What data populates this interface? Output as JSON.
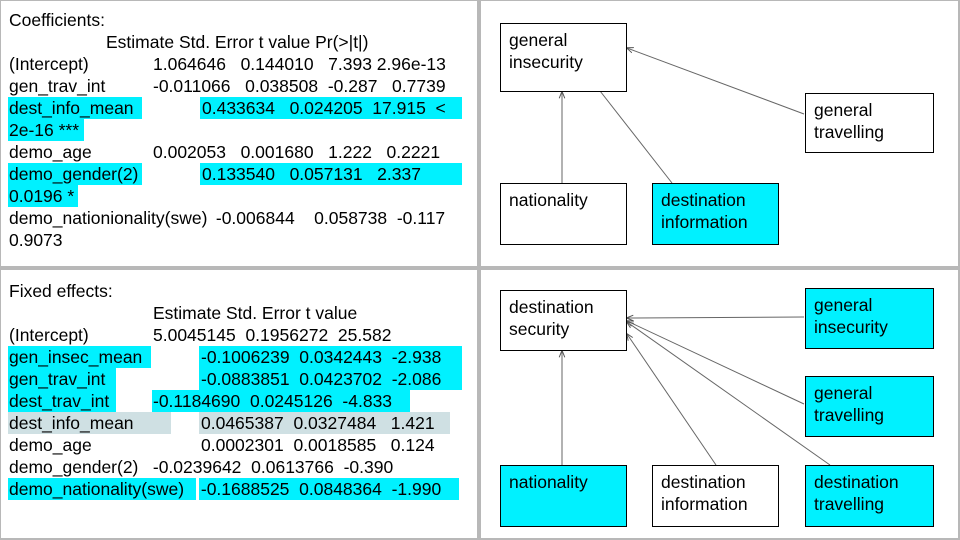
{
  "colors": {
    "highlight": "#00f1ff",
    "highlight_grey": "#cfe0e3",
    "divider": "#b8b8b8"
  },
  "coefficients": {
    "title": "Coefficients:",
    "header": "Estimate Std. Error t value Pr(>|t|)",
    "rows": [
      {
        "name": "(Intercept)",
        "values": "1.064646   0.144010   7.393 2.96e-13"
      },
      {
        "name": "gen_trav_int",
        "values": "-0.011066   0.038508  -0.287   0.7739"
      },
      {
        "name": "dest_info_mean",
        "values": "0.433634   0.024205  17.915  <",
        "wrap": "2e-16 ***"
      },
      {
        "name": "demo_age",
        "values": "0.002053   0.001680   1.222   0.2221"
      },
      {
        "name": "demo_gender(2)",
        "values": "0.133540   0.057131   2.337",
        "wrap": "0.0196 *"
      },
      {
        "name": "demo_nationionality(swe)",
        "values": " -0.006844    0.058738  -0.117",
        "wrap": "0.9073"
      }
    ]
  },
  "fixed_effects": {
    "title": "Fixed effects:",
    "header": "Estimate Std. Error t value",
    "rows": [
      {
        "name": "(Intercept)",
        "values": "5.0045145  0.1956272  25.582"
      },
      {
        "name": "gen_insec_mean",
        "values": "-0.1006239  0.0342443  -2.938"
      },
      {
        "name": "gen_trav_int",
        "values": "-0.0883851  0.0423702  -2.086"
      },
      {
        "name": "dest_trav_int",
        "values": "-0.1184690  0.0245126  -4.833"
      },
      {
        "name": "dest_info_mean",
        "values": "0.0465387  0.0327484   1.421"
      },
      {
        "name": "demo_age",
        "values": "0.0002301  0.0018585   0.124"
      },
      {
        "name": "demo_gender(2)",
        "values": " -0.0239642  0.0613766  -0.390"
      },
      {
        "name": "demo_nationality(swe)",
        "values": " -0.1688525  0.0848364  -1.990"
      }
    ]
  },
  "diagram_top": {
    "nodes": {
      "general_insecurity": "general\ninsecurity",
      "general_travelling": "general\ntravelling",
      "nationality": "nationality",
      "destination_information": "destination\ninformation"
    }
  },
  "diagram_bottom": {
    "nodes": {
      "destination_security": "destination\nsecurity",
      "general_insecurity": "general\ninsecurity",
      "general_travelling": "general\ntravelling",
      "nationality": "nationality",
      "destination_information": "destination\ninformation",
      "destination_travelling": "destination\ntravelling"
    }
  }
}
